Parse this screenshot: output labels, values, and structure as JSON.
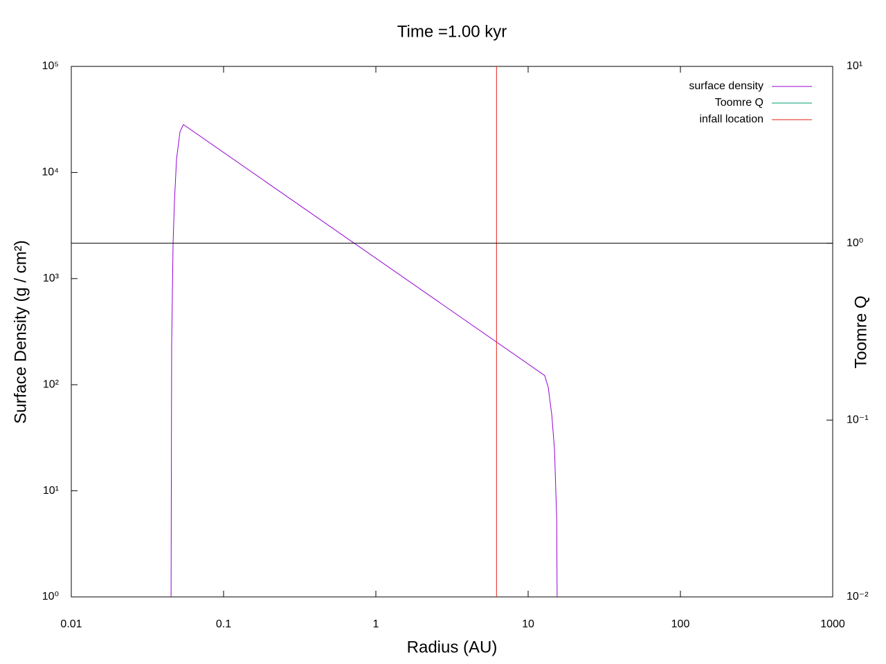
{
  "chart_data": {
    "type": "line",
    "title": "Time =1.00 kyr",
    "x_label": "Radius (AU)",
    "y_label": "Surface Density (g / cm²)",
    "y2_label": "Toomre Q",
    "x_scale": "log",
    "y_scale": "log",
    "y2_scale": "log",
    "xlim": [
      0.01,
      1000
    ],
    "ylim": [
      1,
      100000
    ],
    "y2lim": [
      0.01,
      10
    ],
    "xticks": [
      0.01,
      0.1,
      1,
      10,
      100,
      1000
    ],
    "yticks": [
      {
        "value": 1,
        "label": "10⁰"
      },
      {
        "value": 10,
        "label": "10¹"
      },
      {
        "value": 100,
        "label": "10²"
      },
      {
        "value": 1000,
        "label": "10³"
      },
      {
        "value": 10000,
        "label": "10⁴"
      },
      {
        "value": 100000,
        "label": "10⁵"
      }
    ],
    "y2ticks": [
      {
        "value": 0.01,
        "label": "10⁻²"
      },
      {
        "value": 0.1,
        "label": "10⁻¹"
      },
      {
        "value": 1,
        "label": "10⁰"
      },
      {
        "value": 10,
        "label": "10¹"
      }
    ],
    "legend": "top-right",
    "series": [
      {
        "name": "surface density",
        "color": "#9400d3",
        "x": [
          0.0452,
          0.0456,
          0.0466,
          0.0476,
          0.0491,
          0.0518,
          0.0545,
          12.85,
          13.55,
          14.3,
          14.9,
          15.4,
          15.5
        ],
        "values": [
          1,
          232,
          2150,
          5430,
          13400,
          24400,
          28300,
          122,
          94.5,
          51.8,
          24.5,
          5.45,
          1
        ]
      },
      {
        "name": "Toomre Q",
        "color": "#009e73",
        "axis": "y2",
        "x": [],
        "values": []
      },
      {
        "name": "infall location",
        "color": "#e51e10",
        "x": [
          6.2,
          6.2
        ],
        "values": [
          1,
          100000
        ]
      },
      {
        "color": "#000000",
        "axis": "y2",
        "x": [
          0.01,
          1000
        ],
        "values": [
          1,
          1
        ]
      }
    ]
  }
}
